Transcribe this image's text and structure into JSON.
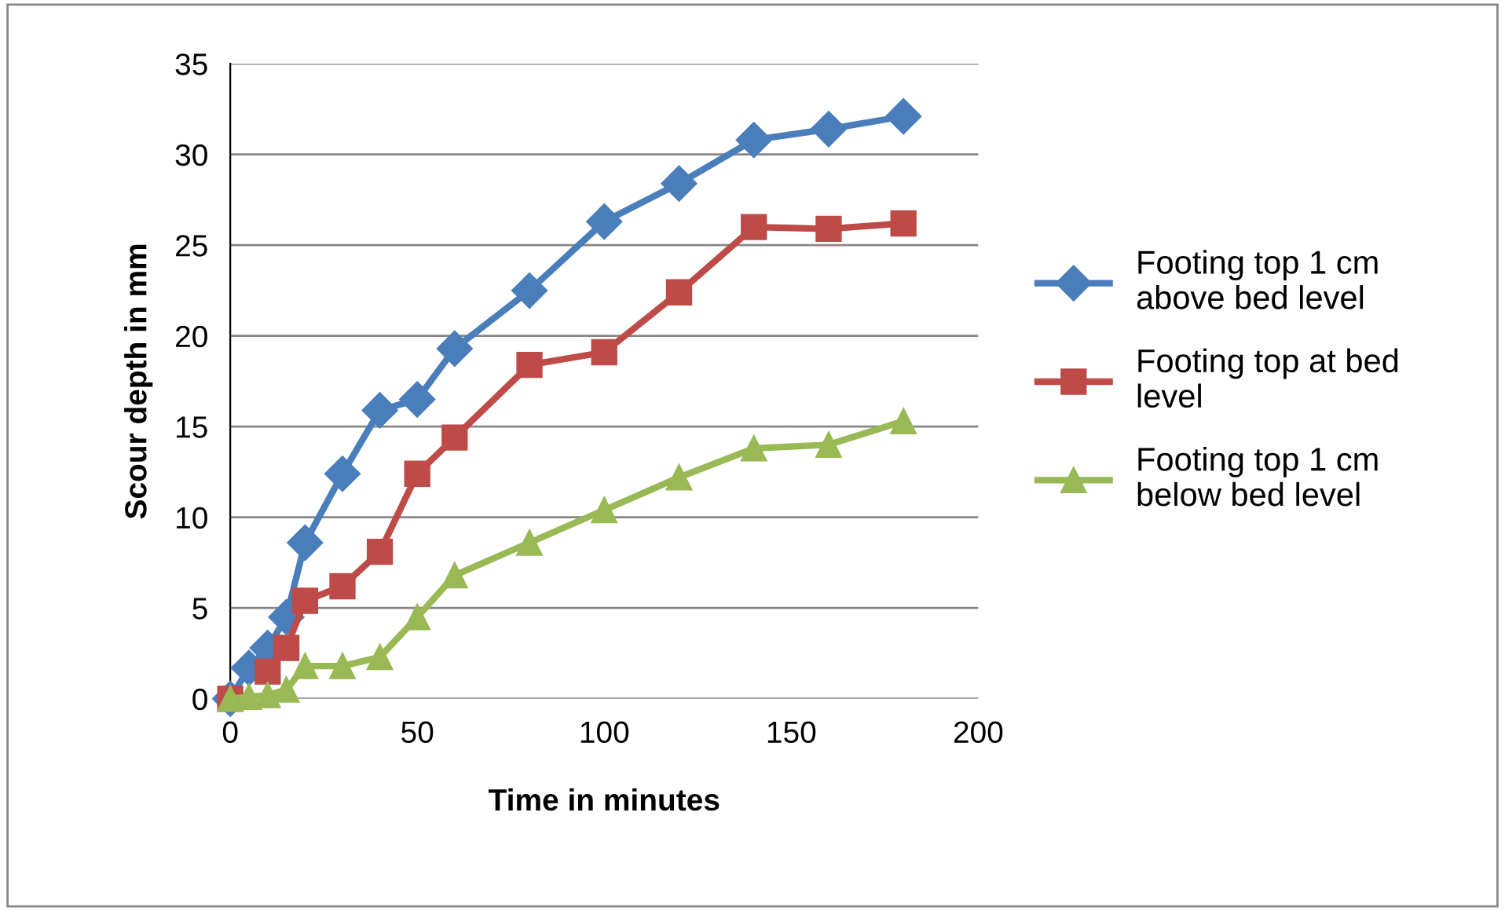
{
  "chart_data": {
    "type": "line",
    "xlabel": "Time in minutes",
    "ylabel": "Scour depth in mm",
    "x": [
      0,
      5,
      10,
      15,
      20,
      30,
      40,
      50,
      60,
      80,
      100,
      120,
      140,
      160,
      180
    ],
    "series": [
      {
        "name": "Footing top 1 cm above bed level",
        "color": "#4a7ebb",
        "marker": "diamond",
        "values": [
          0,
          1.7,
          2.8,
          4.5,
          8.6,
          12.4,
          15.9,
          16.5,
          19.3,
          22.5,
          26.3,
          28.4,
          30.8,
          31.4,
          32.1
        ]
      },
      {
        "name": "Footing top at bed level",
        "color": "#be4b48",
        "marker": "square",
        "values": [
          0,
          null,
          1.5,
          2.8,
          5.4,
          6.2,
          8.1,
          12.4,
          14.4,
          18.4,
          19.1,
          22.4,
          26.0,
          25.9,
          26.2
        ]
      },
      {
        "name": "Footing top 1 cm below bed level",
        "color": "#98b954",
        "marker": "triangle",
        "values": [
          0,
          0.1,
          0.2,
          0.5,
          1.8,
          1.8,
          2.3,
          4.5,
          6.8,
          8.6,
          10.4,
          12.2,
          13.8,
          14.0,
          15.3
        ]
      }
    ],
    "xlim": [
      0,
      200
    ],
    "xticks": [
      0,
      50,
      100,
      150,
      200
    ],
    "ylim": [
      0,
      35
    ],
    "yticks": [
      0,
      5,
      10,
      15,
      20,
      25,
      30,
      35
    ],
    "grid": "y",
    "legend": "right",
    "line_style": "solid"
  }
}
